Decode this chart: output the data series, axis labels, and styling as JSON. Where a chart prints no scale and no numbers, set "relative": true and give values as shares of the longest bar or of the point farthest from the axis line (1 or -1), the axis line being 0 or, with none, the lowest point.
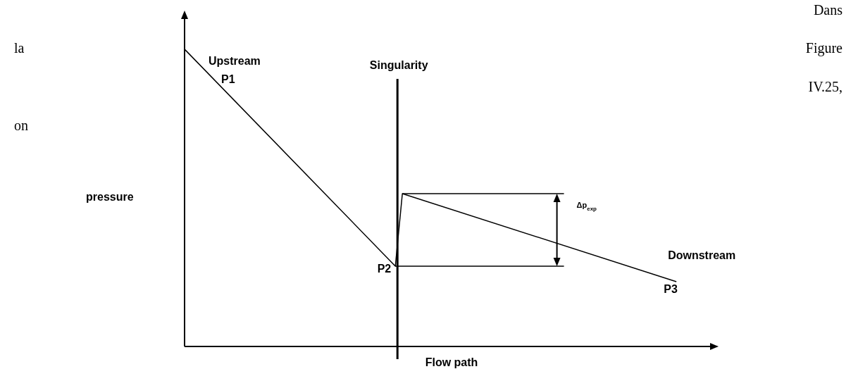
{
  "chart_data": {
    "type": "line",
    "relative": true,
    "xlabel": "Flow path",
    "ylabel": "pressure",
    "legend": false,
    "marker": "none",
    "line_style": "solid",
    "categories": [
      null,
      null,
      null,
      null,
      null,
      null,
      null,
      null,
      null,
      null,
      null,
      null,
      null,
      null,
      null,
      null,
      null,
      null,
      null,
      null,
      null,
      null,
      null,
      null,
      null,
      null,
      null,
      null,
      null,
      null,
      null,
      null,
      null,
      null,
      null,
      null,
      null,
      null,
      null,
      null,
      null,
      null,
      null,
      null,
      null,
      null,
      null,
      null,
      null,
      null,
      null,
      null,
      null,
      null,
      null,
      null,
      null,
      null,
      null,
      null,
      null,
      null,
      null,
      null,
      null,
      null,
      null,
      null,
      null,
      null,
      null,
      null,
      null,
      null,
      null,
      null,
      null
    ],
    "series": [
      {
        "color": "#000000",
        "values": [
          1,
          null,
          null,
          null,
          null,
          null,
          null,
          null,
          null,
          null,
          null,
          null,
          null,
          null,
          null,
          null,
          null,
          null,
          null,
          null,
          null,
          null,
          null,
          null,
          null,
          null,
          null,
          null,
          null,
          null,
          0.27,
          0.514,
          null,
          null,
          null,
          null,
          null,
          null,
          null,
          null,
          null,
          null,
          null,
          null,
          null,
          null,
          null,
          null,
          null,
          null,
          null,
          null,
          null,
          null,
          null,
          null,
          null,
          null,
          null,
          null,
          null,
          null,
          null,
          null,
          null,
          null,
          null,
          null,
          null,
          null,
          0.218,
          null,
          null,
          null,
          null,
          null,
          null
        ]
      },
      {
        "color": "#000000",
        "values": [
          null,
          null,
          null,
          null,
          null,
          null,
          null,
          null,
          null,
          null,
          null,
          null,
          null,
          null,
          null,
          null,
          null,
          null,
          null,
          null,
          null,
          null,
          null,
          null,
          null,
          null,
          null,
          null,
          null,
          null,
          null,
          0.514,
          null,
          null,
          null,
          null,
          null,
          null,
          null,
          null,
          null,
          null,
          null,
          null,
          null,
          null,
          null,
          null,
          null,
          null,
          null,
          null,
          null,
          null,
          0.514,
          null,
          null,
          null,
          null,
          null,
          null,
          null,
          null,
          null,
          null,
          null,
          null,
          null,
          null,
          null,
          null,
          null,
          null,
          null,
          null,
          null,
          null
        ]
      },
      {
        "color": "#000000",
        "values": [
          null,
          null,
          null,
          null,
          null,
          null,
          null,
          null,
          null,
          null,
          null,
          null,
          null,
          null,
          null,
          null,
          null,
          null,
          null,
          null,
          null,
          null,
          null,
          null,
          null,
          null,
          null,
          null,
          null,
          null,
          0.27,
          null,
          null,
          null,
          null,
          null,
          null,
          null,
          null,
          null,
          null,
          null,
          null,
          null,
          null,
          null,
          null,
          null,
          null,
          null,
          null,
          null,
          null,
          null,
          0.27,
          null,
          null,
          null,
          null,
          null,
          null,
          null,
          null,
          null,
          null,
          null,
          null,
          null,
          null,
          null,
          null,
          null,
          null,
          null,
          null,
          null,
          null
        ]
      }
    ],
    "annotations": [
      "Singularity",
      "Upstream",
      "P1",
      "P2",
      "Downstream",
      "P3",
      "Δp$_{exp}$",
      "Dans la Figure IV.25, on"
    ]
  }
}
